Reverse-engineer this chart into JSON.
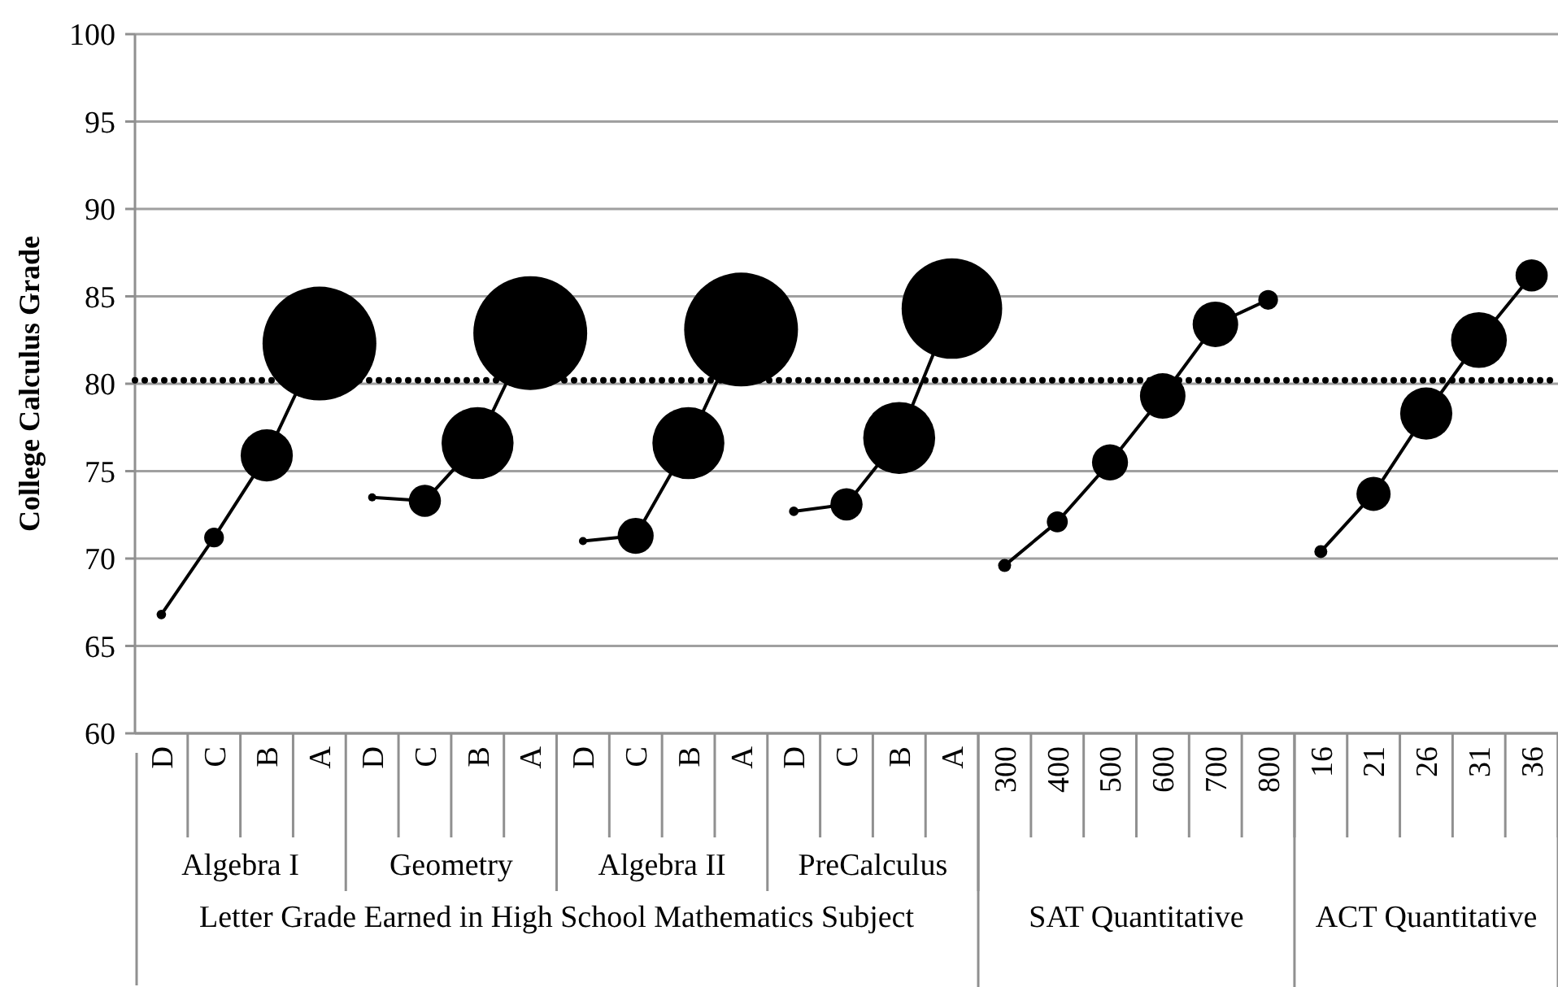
{
  "chart_data": {
    "type": "bubble",
    "ylabel": "College Calculus Grade",
    "categories": [
      "D",
      "C",
      "B",
      "A",
      "D",
      "C",
      "B",
      "A",
      "D",
      "C",
      "B",
      "A",
      "D",
      "C",
      "B",
      "A",
      "300",
      "400",
      "500",
      "600",
      "700",
      "800",
      "16",
      "21",
      "26",
      "31",
      "36"
    ],
    "series": [
      {
        "color": "#000000",
        "values": [
          66.8,
          71.2,
          75.9,
          82.3,
          null,
          null,
          null,
          null,
          null,
          null,
          null,
          null,
          null,
          null,
          null,
          null,
          null,
          null,
          null,
          null,
          null,
          null,
          null,
          null,
          null,
          null,
          null
        ],
        "sizes": [
          0.007,
          0.03,
          0.21,
          1,
          null,
          null,
          null,
          null,
          null,
          null,
          null,
          null,
          null,
          null,
          null,
          null,
          null,
          null,
          null,
          null,
          null,
          null,
          null,
          null,
          null,
          null,
          null
        ]
      },
      {
        "color": "#000000",
        "values": [
          null,
          null,
          null,
          null,
          73.5,
          73.3,
          76.6,
          82.9,
          null,
          null,
          null,
          null,
          null,
          null,
          null,
          null,
          null,
          null,
          null,
          null,
          null,
          null,
          null,
          null,
          null,
          null,
          null
        ],
        "sizes": [
          null,
          null,
          null,
          null,
          0.005,
          0.08,
          0.4,
          1,
          null,
          null,
          null,
          null,
          null,
          null,
          null,
          null,
          null,
          null,
          null,
          null,
          null,
          null,
          null,
          null,
          null,
          null,
          null
        ]
      },
      {
        "color": "#000000",
        "values": [
          null,
          null,
          null,
          null,
          null,
          null,
          null,
          null,
          71.0,
          71.3,
          76.6,
          83.1,
          null,
          null,
          null,
          null,
          null,
          null,
          null,
          null,
          null,
          null,
          null,
          null,
          null,
          null,
          null
        ],
        "sizes": [
          null,
          null,
          null,
          null,
          null,
          null,
          null,
          null,
          0.005,
          0.1,
          0.4,
          1,
          null,
          null,
          null,
          null,
          null,
          null,
          null,
          null,
          null,
          null,
          null,
          null,
          null,
          null,
          null
        ]
      },
      {
        "color": "#000000",
        "values": [
          null,
          null,
          null,
          null,
          null,
          null,
          null,
          null,
          null,
          null,
          null,
          null,
          72.7,
          73.1,
          76.9,
          84.3,
          null,
          null,
          null,
          null,
          null,
          null,
          null,
          null,
          null,
          null,
          null
        ],
        "sizes": [
          null,
          null,
          null,
          null,
          null,
          null,
          null,
          null,
          null,
          null,
          null,
          null,
          0.007,
          0.08,
          0.4,
          0.78,
          null,
          null,
          null,
          null,
          null,
          null,
          null,
          null,
          null,
          null,
          null
        ]
      },
      {
        "color": "#000000",
        "values": [
          null,
          null,
          null,
          null,
          null,
          null,
          null,
          null,
          null,
          null,
          null,
          null,
          null,
          null,
          null,
          null,
          69.6,
          72.1,
          75.5,
          79.3,
          83.4,
          84.8,
          null,
          null,
          null,
          null,
          null
        ],
        "sizes": [
          null,
          null,
          null,
          null,
          null,
          null,
          null,
          null,
          null,
          null,
          null,
          null,
          null,
          null,
          null,
          null,
          0.013,
          0.034,
          0.1,
          0.16,
          0.16,
          0.03,
          null,
          null,
          null,
          null,
          null
        ]
      },
      {
        "color": "#000000",
        "values": [
          null,
          null,
          null,
          null,
          null,
          null,
          null,
          null,
          null,
          null,
          null,
          null,
          null,
          null,
          null,
          null,
          null,
          null,
          null,
          null,
          null,
          null,
          70.4,
          73.7,
          78.3,
          82.5,
          86.2
        ],
        "sizes": [
          null,
          null,
          null,
          null,
          null,
          null,
          null,
          null,
          null,
          null,
          null,
          null,
          null,
          null,
          null,
          null,
          null,
          null,
          null,
          null,
          null,
          null,
          0.013,
          0.09,
          0.21,
          0.24,
          0.08
        ]
      }
    ],
    "annotations": [
      "Algebra I",
      "Geometry",
      "Algebra II",
      "PreCalculus",
      "Letter Grade Earned in High School Mathematics Subject",
      "SAT Quantitative",
      "ACT Quantitative"
    ],
    "ref_lines": [
      {
        "axis": "y",
        "value": 80.2,
        "color": "#000000",
        "line_style": "dotted"
      }
    ],
    "ylim": [
      60,
      100
    ],
    "yticks": [
      60,
      65,
      70,
      75,
      80,
      85,
      90,
      95,
      100
    ],
    "grid": "y",
    "marker": "circle",
    "line_style": "solid",
    "legend": false
  }
}
